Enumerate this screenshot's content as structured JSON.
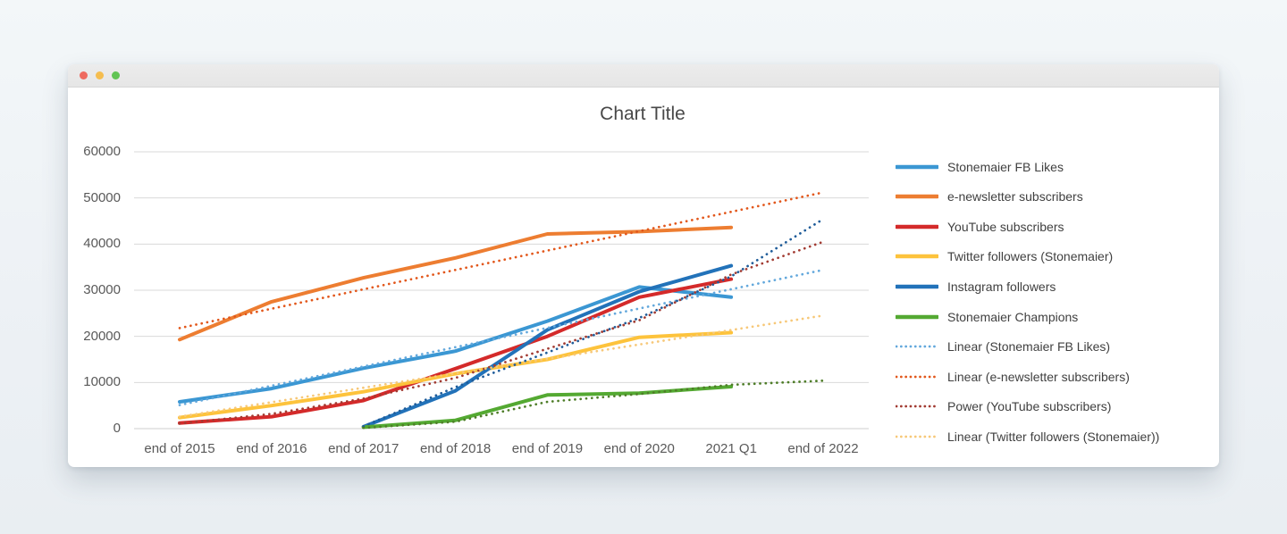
{
  "window": {
    "traffic_lights": [
      {
        "name": "close",
        "color": "#ee6a5f"
      },
      {
        "name": "minimize",
        "color": "#f5bd4f"
      },
      {
        "name": "zoom",
        "color": "#61c454"
      }
    ]
  },
  "chart_data": {
    "type": "line",
    "title": "Chart Title",
    "categories": [
      "end of 2015",
      "end of 2016",
      "end of 2017",
      "end of 2018",
      "end of 2019",
      "end of 2020",
      "2021 Q1",
      "end of 2022"
    ],
    "ylim": [
      0,
      60000
    ],
    "ytick_step": 10000,
    "ytick_labels": [
      "0",
      "10000",
      "20000",
      "30000",
      "40000",
      "50000",
      "60000"
    ],
    "grid": "horizontal",
    "legend_position": "right",
    "series": [
      {
        "name": "Stonemaier FB Likes",
        "color": "#3b97d3",
        "style": "solid",
        "in_legend": true,
        "values": [
          5800,
          8700,
          13100,
          16800,
          23300,
          30700,
          28500,
          null
        ]
      },
      {
        "name": "e-newsletter subscribers",
        "color": "#ed7d31",
        "style": "solid",
        "in_legend": true,
        "values": [
          19300,
          27500,
          32700,
          37000,
          42200,
          42700,
          43600,
          null
        ]
      },
      {
        "name": "YouTube subscribers",
        "color": "#d42a2a",
        "style": "solid",
        "in_legend": true,
        "values": [
          1200,
          2600,
          6100,
          13000,
          20000,
          28500,
          32400,
          null
        ]
      },
      {
        "name": "Twitter followers (Stonemaier)",
        "color": "#fdc33c",
        "style": "solid",
        "in_legend": true,
        "values": [
          2400,
          5000,
          8000,
          11900,
          15000,
          19800,
          20800,
          null
        ]
      },
      {
        "name": "Instagram followers",
        "color": "#2272b9",
        "style": "solid",
        "in_legend": true,
        "values": [
          null,
          null,
          400,
          8200,
          21400,
          29700,
          35300,
          null
        ]
      },
      {
        "name": "Stonemaier Champions",
        "color": "#54a932",
        "style": "solid",
        "in_legend": true,
        "values": [
          null,
          null,
          300,
          1800,
          7300,
          7700,
          9100,
          null
        ]
      },
      {
        "name": "Linear (Stonemaier FB Likes)",
        "color": "#63a8dc",
        "style": "dotted",
        "in_legend": true,
        "values": [
          5100,
          9290,
          13470,
          17660,
          21840,
          26030,
          30210,
          34400
        ]
      },
      {
        "name": "Linear (e-newsletter subscribers)",
        "color": "#e2571b",
        "style": "dotted",
        "in_legend": true,
        "values": [
          21800,
          26000,
          30200,
          34400,
          38600,
          42800,
          47000,
          51200
        ]
      },
      {
        "name": "Power (YouTube subscribers)",
        "color": "#a23b32",
        "style": "dotted",
        "in_legend": true,
        "values": [
          1100,
          3200,
          6500,
          11000,
          17300,
          23500,
          33400,
          40500
        ]
      },
      {
        "name": "Linear (Twitter followers (Stonemaier))",
        "color": "#f7c878",
        "style": "dotted",
        "in_legend": true,
        "values": [
          2600,
          5730,
          8860,
          11990,
          15110,
          18240,
          21370,
          24500
        ]
      },
      {
        "name": "unlabeled trendline (follows Instagram followers)",
        "color": "#1f5c99",
        "style": "dotted",
        "in_legend": false,
        "values": [
          null,
          null,
          500,
          9000,
          16500,
          24000,
          33000,
          45400
        ]
      },
      {
        "name": "unlabeled trendline (follows Stonemaier Champions)",
        "color": "#4e7d28",
        "style": "dotted",
        "in_legend": false,
        "values": [
          null,
          null,
          150,
          1500,
          5800,
          7500,
          9500,
          10400
        ]
      }
    ]
  }
}
